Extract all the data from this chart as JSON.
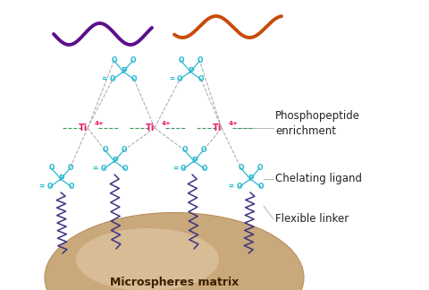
{
  "bg_color": "#ffffff",
  "cyan": "#29b8d0",
  "pink": "#e8186d",
  "purple_peptide": "#5c0f8b",
  "orange_peptide": "#c84b0a",
  "linker_color": "#3d3580",
  "sphere_color_main": "#c9a87c",
  "sphere_color_light": "#e2cba8",
  "sphere_edge": "#b89060",
  "label_color": "#222222",
  "dashed_color": "#aaaaaa",
  "green_dash": "#3a9a5c",
  "label_fontsize": 8.5,
  "annotations": {
    "phosphopeptide": "Phosphopeptide\nenrichment",
    "chelating": "Chelating ligand",
    "linker": "Flexible linker",
    "matrix": "Microspheres matrix"
  }
}
